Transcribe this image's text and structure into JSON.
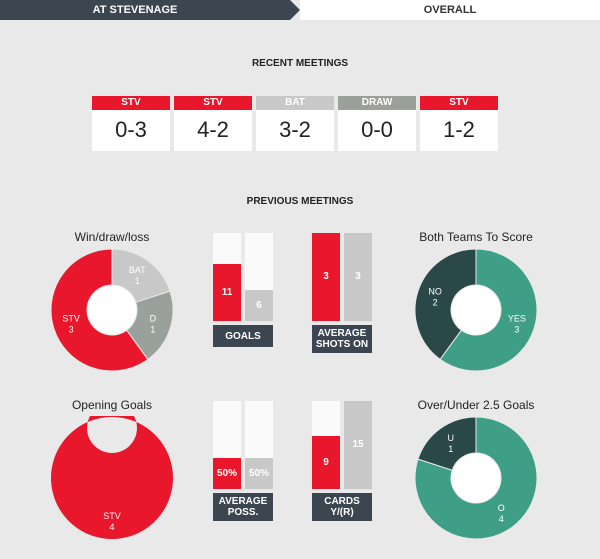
{
  "tabs": {
    "active": "AT STEVENAGE",
    "inactive": "OVERALL"
  },
  "colors": {
    "red": "#e8172b",
    "grey": "#c8c8c8",
    "darkgrey": "#9aa09c",
    "dark": "#3b4650",
    "teal": "#3f9e86",
    "teal_dark": "#2a4848"
  },
  "recent": {
    "title": "RECENT MEETINGS",
    "items": [
      {
        "tag": "STV",
        "score": "0-3",
        "type": "red"
      },
      {
        "tag": "STV",
        "score": "4-2",
        "type": "red"
      },
      {
        "tag": "BAT",
        "score": "3-2",
        "type": "grey"
      },
      {
        "tag": "DRAW",
        "score": "0-0",
        "type": "darkgrey"
      },
      {
        "tag": "STV",
        "score": "1-2",
        "type": "red"
      }
    ]
  },
  "previous": {
    "title": "PREVIOUS MEETINGS"
  },
  "wdl": {
    "title": "Win/draw/loss",
    "slices": [
      {
        "label": "STV",
        "value": 3
      },
      {
        "label": "BAT",
        "value": 1
      },
      {
        "label": "D",
        "value": 1
      }
    ]
  },
  "goals": {
    "caption": "GOALS",
    "home": 11,
    "away": 6,
    "max": 17
  },
  "shots": {
    "caption_line1": "AVERAGE",
    "caption_line2": "SHOTS ON",
    "home": 3,
    "away": 3,
    "max": 3
  },
  "btts": {
    "title": "Both Teams To Score",
    "slices": [
      {
        "label": "YES",
        "value": 3
      },
      {
        "label": "NO",
        "value": 2
      }
    ]
  },
  "opening": {
    "title": "Opening Goals",
    "slices": [
      {
        "label": "STV",
        "value": 4
      }
    ]
  },
  "poss": {
    "caption_line1": "AVERAGE",
    "caption_line2": "POSS.",
    "home": "50%",
    "away": "50%",
    "home_pct": 50,
    "away_pct": 50
  },
  "cards": {
    "caption_line1": "CARDS",
    "caption_line2": "Y/(R)",
    "home": 9,
    "away": 15,
    "max": 15
  },
  "ou": {
    "title": "Over/Under 2.5 Goals",
    "slices": [
      {
        "label": "O",
        "value": 4
      },
      {
        "label": "U",
        "value": 1
      }
    ]
  }
}
